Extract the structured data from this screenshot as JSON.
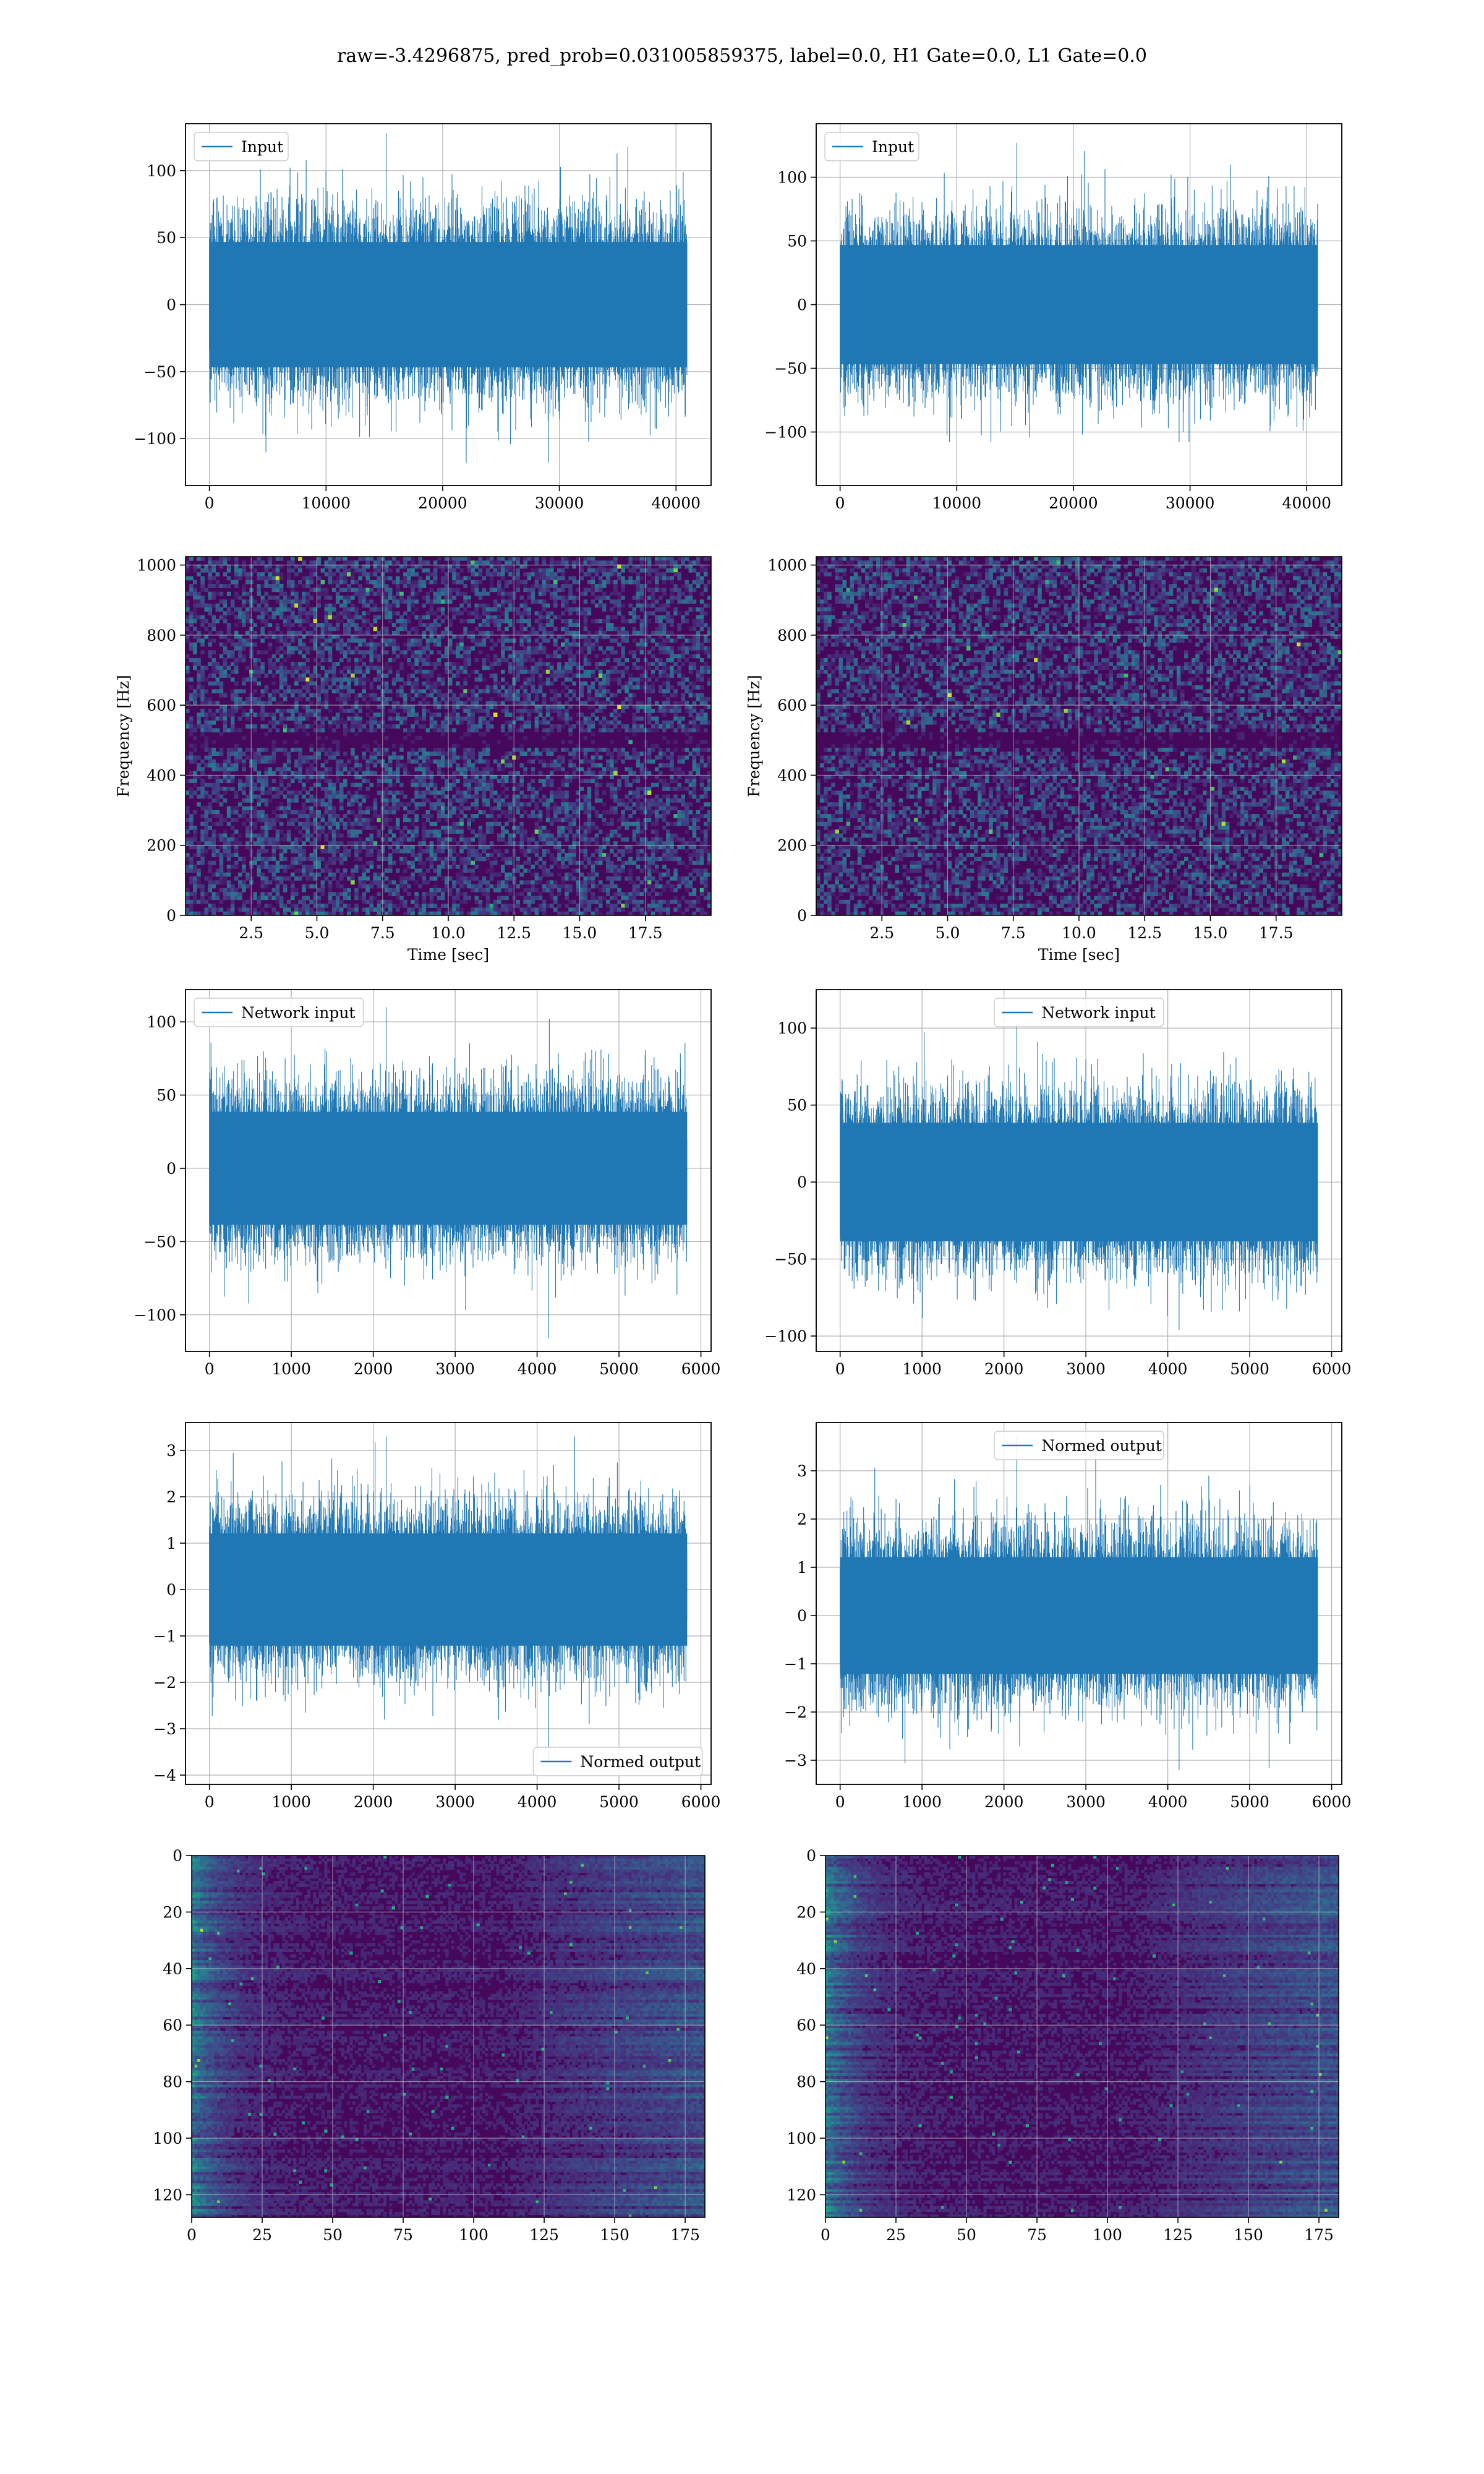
{
  "figure": {
    "suptitle": "raw=-3.4296875, pred_prob=0.031005859375, label=0.0, H1 Gate=0.0, L1 Gate=0.0",
    "colors": {
      "line": "#1f77b4",
      "grid": "#b0b0b0",
      "cmap_low": "#440154",
      "cmap_high": "#fde725"
    }
  },
  "chart_data": [
    {
      "id": "input-h1",
      "type": "line",
      "legend": "Input",
      "legend_loc": "upper-left",
      "n_samples": 40960,
      "xlim": [
        -2048,
        43008
      ],
      "ylim": [
        -135,
        135
      ],
      "xticks": [
        0,
        10000,
        20000,
        30000,
        40000
      ],
      "yticks": [
        -100,
        -50,
        0,
        50,
        100
      ],
      "amplitude": {
        "typical_max": 85,
        "peak_max": 128,
        "peak_min": -118
      },
      "grid": true
    },
    {
      "id": "input-l1",
      "type": "line",
      "legend": "Input",
      "legend_loc": "upper-left",
      "n_samples": 40960,
      "xlim": [
        -2048,
        43008
      ],
      "ylim": [
        -142,
        142
      ],
      "xticks": [
        0,
        10000,
        20000,
        30000,
        40000
      ],
      "yticks": [
        -100,
        -50,
        0,
        50,
        100
      ],
      "amplitude": {
        "typical_max": 85,
        "peak_max": 127,
        "peak_min": -108
      },
      "grid": true
    },
    {
      "id": "spec-h1",
      "type": "heatmap",
      "xlabel": "Time [sec]",
      "ylabel": "Frequency [Hz]",
      "xlim": [
        0,
        20
      ],
      "ylim": [
        0,
        1024
      ],
      "xticks": [
        2.5,
        5.0,
        7.5,
        10.0,
        12.5,
        15.0,
        17.5
      ],
      "yticks": [
        0,
        200,
        400,
        600,
        800,
        1000
      ],
      "dark_band_hz": [
        480,
        520
      ],
      "colormap": "viridis",
      "grid": true
    },
    {
      "id": "spec-l1",
      "type": "heatmap",
      "xlabel": "Time [sec]",
      "ylabel": "Frequency [Hz]",
      "xlim": [
        0,
        20
      ],
      "ylim": [
        0,
        1024
      ],
      "xticks": [
        2.5,
        5.0,
        7.5,
        10.0,
        12.5,
        15.0,
        17.5
      ],
      "yticks": [
        0,
        200,
        400,
        600,
        800,
        1000
      ],
      "dark_band_hz": [
        480,
        520
      ],
      "colormap": "viridis",
      "grid": true
    },
    {
      "id": "net-h1",
      "type": "line",
      "legend": "Network input",
      "legend_loc": "upper-left",
      "n_samples": 5832,
      "xlim": [
        -292,
        6124
      ],
      "ylim": [
        -125,
        122
      ],
      "xticks": [
        0,
        1000,
        2000,
        3000,
        4000,
        5000,
        6000
      ],
      "yticks": [
        -100,
        -50,
        0,
        50,
        100
      ],
      "amplitude": {
        "typical_max": 70,
        "peak_max": 110,
        "peak_min": -116
      },
      "grid": true
    },
    {
      "id": "net-l1",
      "type": "line",
      "legend": "Network input",
      "legend_loc": "upper-center",
      "n_samples": 5832,
      "xlim": [
        -292,
        6124
      ],
      "ylim": [
        -110,
        125
      ],
      "xticks": [
        0,
        1000,
        2000,
        3000,
        4000,
        5000,
        6000
      ],
      "yticks": [
        -100,
        -50,
        0,
        50,
        100
      ],
      "amplitude": {
        "typical_max": 70,
        "peak_max": 103,
        "peak_min": -96
      },
      "grid": true
    },
    {
      "id": "norm-h1",
      "type": "line",
      "legend": "Normed output",
      "legend_loc": "lower-right",
      "n_samples": 5832,
      "xlim": [
        -292,
        6124
      ],
      "ylim": [
        -4.2,
        3.6
      ],
      "xticks": [
        0,
        1000,
        2000,
        3000,
        4000,
        5000,
        6000
      ],
      "yticks": [
        -4,
        -3,
        -2,
        -1,
        0,
        1,
        2,
        3
      ],
      "amplitude": {
        "typical_max": 2.2,
        "peak_max": 3.3,
        "peak_min": -3.8
      },
      "grid": true
    },
    {
      "id": "norm-l1",
      "type": "line",
      "legend": "Normed output",
      "legend_loc": "upper-center",
      "n_samples": 5832,
      "xlim": [
        -292,
        6124
      ],
      "ylim": [
        -3.5,
        4.0
      ],
      "xticks": [
        0,
        1000,
        2000,
        3000,
        4000,
        5000,
        6000
      ],
      "yticks": [
        -3,
        -2,
        -1,
        0,
        1,
        2,
        3
      ],
      "amplitude": {
        "typical_max": 2.2,
        "peak_max": 3.7,
        "peak_min": -3.2
      },
      "grid": true
    },
    {
      "id": "feat-h1",
      "type": "heatmap",
      "rows": 128,
      "cols": 182,
      "xlim": [
        0,
        182
      ],
      "ylim": [
        128,
        0
      ],
      "xticks": [
        0,
        25,
        50,
        75,
        100,
        125,
        150,
        175
      ],
      "yticks": [
        0,
        20,
        40,
        60,
        80,
        100,
        120
      ],
      "colormap": "viridis",
      "grid": true
    },
    {
      "id": "feat-l1",
      "type": "heatmap",
      "rows": 128,
      "cols": 182,
      "xlim": [
        0,
        182
      ],
      "ylim": [
        128,
        0
      ],
      "xticks": [
        0,
        25,
        50,
        75,
        100,
        125,
        150,
        175
      ],
      "yticks": [
        0,
        20,
        40,
        60,
        80,
        100,
        120
      ],
      "colormap": "viridis",
      "grid": true
    }
  ]
}
